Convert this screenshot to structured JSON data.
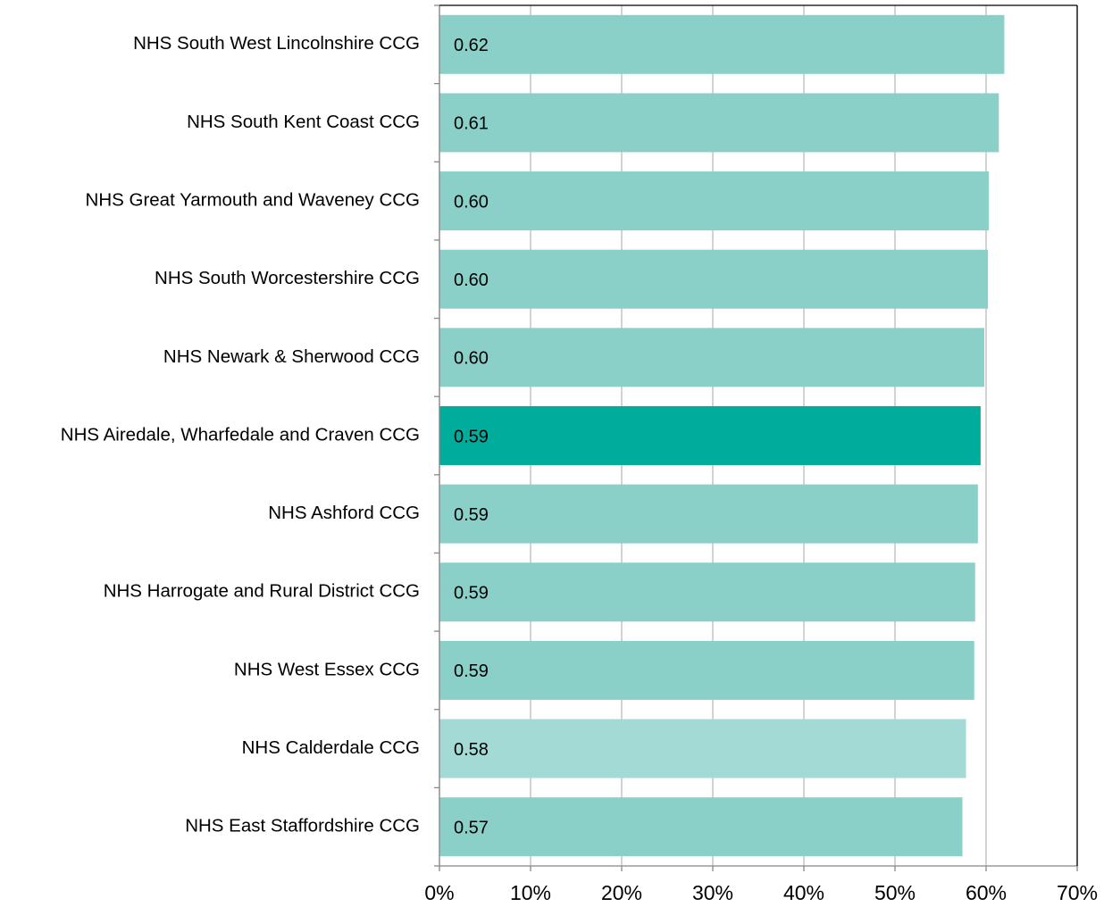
{
  "chart_data": {
    "type": "barh",
    "categories": [
      "NHS South West Lincolnshire CCG",
      "NHS South Kent Coast CCG",
      "NHS Great Yarmouth and Waveney CCG",
      "NHS South Worcestershire CCG",
      "NHS Newark & Sherwood CCG",
      "NHS Airedale, Wharfedale and Craven CCG",
      "NHS Ashford CCG",
      "NHS Harrogate and Rural District CCG",
      "NHS West Essex CCG",
      "NHS Calderdale CCG",
      "NHS East Staffordshire CCG"
    ],
    "values": [
      62,
      61.4,
      60.3,
      60.2,
      59.8,
      59.4,
      59.1,
      58.8,
      58.7,
      57.8,
      57.4
    ],
    "value_labels": [
      "0.62",
      "0.61",
      "0.60",
      "0.60",
      "0.60",
      "0.59",
      "0.59",
      "0.59",
      "0.59",
      "0.58",
      "0.57"
    ],
    "colors": [
      "#8ad0c8",
      "#8ad0c8",
      "#8ad0c8",
      "#8ad0c8",
      "#8ad0c8",
      "#00ac9c",
      "#8ad0c8",
      "#8ad0c8",
      "#8ad0c8",
      "#a3dad5",
      "#8ad0c8"
    ],
    "xlim": [
      0,
      70
    ],
    "xticks": [
      {
        "value": 0,
        "label": "0%"
      },
      {
        "value": 10,
        "label": "10%"
      },
      {
        "value": 20,
        "label": "20%"
      },
      {
        "value": 30,
        "label": "30%"
      },
      {
        "value": 40,
        "label": "40%"
      },
      {
        "value": 50,
        "label": "50%"
      },
      {
        "value": 60,
        "label": "60%"
      },
      {
        "value": 70,
        "label": "70%"
      }
    ],
    "grid": true
  }
}
